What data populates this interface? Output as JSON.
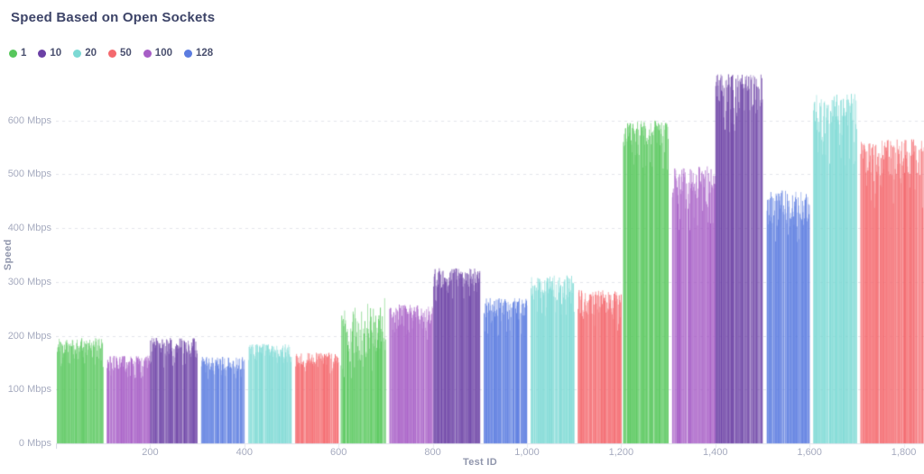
{
  "chart_data": {
    "type": "bar",
    "title": "Speed Based on Open Sockets",
    "xlabel": "Test ID",
    "ylabel": "Speed",
    "legend_position": "top-left",
    "grid": "dashed-horizontal",
    "xlim": [
      0,
      1843
    ],
    "ylim": [
      0,
      700
    ],
    "x_ticks": [
      {
        "value": 200,
        "label": "200"
      },
      {
        "value": 400,
        "label": "400"
      },
      {
        "value": 600,
        "label": "600"
      },
      {
        "value": 800,
        "label": "800"
      },
      {
        "value": 1000,
        "label": "1,000"
      },
      {
        "value": 1200,
        "label": "1,200"
      },
      {
        "value": 1400,
        "label": "1,400"
      },
      {
        "value": 1600,
        "label": "1,600"
      },
      {
        "value": 1800,
        "label": "1,800"
      }
    ],
    "y_ticks": [
      {
        "value": 0,
        "label": "0 Mbps"
      },
      {
        "value": 100,
        "label": "100 Mbps"
      },
      {
        "value": 200,
        "label": "200 Mbps"
      },
      {
        "value": 300,
        "label": "300 Mbps"
      },
      {
        "value": 400,
        "label": "400 Mbps"
      },
      {
        "value": 500,
        "label": "500 Mbps"
      },
      {
        "value": 600,
        "label": "600 Mbps"
      }
    ],
    "series": [
      {
        "name": "1",
        "color": "#57c75c"
      },
      {
        "name": "10",
        "color": "#6b40a5"
      },
      {
        "name": "20",
        "color": "#7cd9d4"
      },
      {
        "name": "50",
        "color": "#f4696e"
      },
      {
        "name": "100",
        "color": "#a75ec6"
      },
      {
        "name": "128",
        "color": "#5b7ce0"
      }
    ],
    "blocks": [
      {
        "sockets": "1",
        "x": [
          2,
          100
        ],
        "speed_lo": [
          150,
          150
        ],
        "speed_hi": [
          196,
          196
        ]
      },
      {
        "sockets": "100",
        "x": [
          108,
          200
        ],
        "speed_lo": [
          128,
          128
        ],
        "speed_hi": [
          163,
          163
        ]
      },
      {
        "sockets": "10",
        "x": [
          200,
          300
        ],
        "speed_lo": [
          152,
          152
        ],
        "speed_hi": [
          197,
          197
        ]
      },
      {
        "sockets": "128",
        "x": [
          308,
          400
        ],
        "speed_lo": [
          126,
          126
        ],
        "speed_hi": [
          161,
          161
        ]
      },
      {
        "sockets": "20",
        "x": [
          408,
          500
        ],
        "speed_lo": [
          150,
          150
        ],
        "speed_hi": [
          185,
          185
        ]
      },
      {
        "sockets": "50",
        "x": [
          508,
          600
        ],
        "speed_lo": [
          136,
          136
        ],
        "speed_hi": [
          169,
          169
        ]
      },
      {
        "sockets": "1",
        "x": [
          604,
          700
        ],
        "speed_lo": [
          140,
          170
        ],
        "speed_hi": [
          245,
          272
        ],
        "spread": "high"
      },
      {
        "sockets": "100",
        "x": [
          708,
          800
        ],
        "speed_lo": [
          203,
          203
        ],
        "speed_hi": [
          258,
          258
        ]
      },
      {
        "sockets": "10",
        "x": [
          800,
          900
        ],
        "speed_lo": [
          276,
          276
        ],
        "speed_hi": [
          326,
          326
        ]
      },
      {
        "sockets": "128",
        "x": [
          908,
          1000
        ],
        "speed_lo": [
          213,
          213
        ],
        "speed_hi": [
          270,
          270
        ]
      },
      {
        "sockets": "20",
        "x": [
          1008,
          1100
        ],
        "speed_lo": [
          250,
          250
        ],
        "speed_hi": [
          312,
          312
        ]
      },
      {
        "sockets": "50",
        "x": [
          1108,
          1200
        ],
        "speed_lo": [
          223,
          223
        ],
        "speed_hi": [
          285,
          285
        ]
      },
      {
        "sockets": "1",
        "x": [
          1204,
          1300
        ],
        "speed_lo": [
          524,
          524
        ],
        "speed_hi": [
          600,
          600
        ]
      },
      {
        "sockets": "100",
        "x": [
          1308,
          1400
        ],
        "speed_lo": [
          420,
          420
        ],
        "speed_hi": [
          516,
          516
        ]
      },
      {
        "sockets": "10",
        "x": [
          1400,
          1500
        ],
        "speed_lo": [
          596,
          596
        ],
        "speed_hi": [
          686,
          686
        ]
      },
      {
        "sockets": "128",
        "x": [
          1508,
          1600
        ],
        "speed_lo": [
          388,
          388
        ],
        "speed_hi": [
          470,
          470
        ]
      },
      {
        "sockets": "20",
        "x": [
          1608,
          1700
        ],
        "speed_lo": [
          542,
          542
        ],
        "speed_hi": [
          650,
          650
        ]
      },
      {
        "sockets": "50",
        "x": [
          1708,
          1843
        ],
        "speed_lo": [
          455,
          455
        ],
        "speed_hi": [
          565,
          565
        ]
      }
    ]
  }
}
